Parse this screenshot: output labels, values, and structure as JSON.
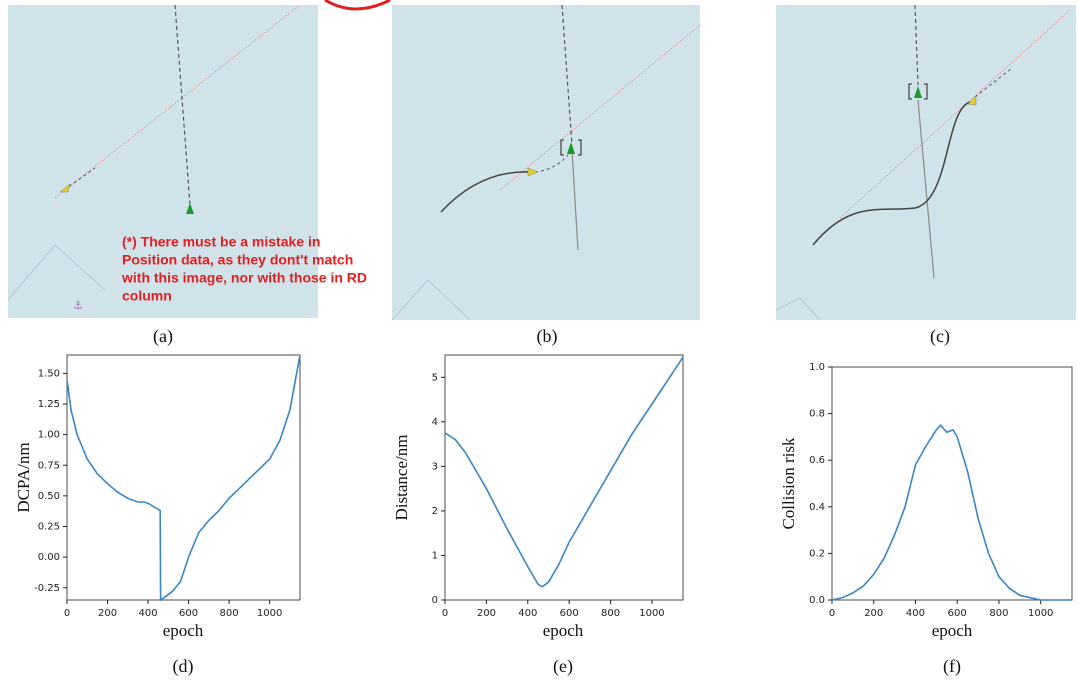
{
  "maps": {
    "panels": [
      "(a)",
      "(b)",
      "(c)"
    ],
    "annotation": [
      "(*) There must be a mistake in",
      "Position data, as they dont't match",
      "with this image, nor with those in RD",
      "column"
    ]
  },
  "chart_data": [
    {
      "type": "line",
      "label": "(d)",
      "ylabel": "DCPA/nm",
      "xlabel": "epoch",
      "color": "#3a86c3",
      "xlim": [
        0,
        1150
      ],
      "xticks": [
        0,
        200,
        400,
        600,
        800,
        1000
      ],
      "ylim": [
        -0.35,
        1.65
      ],
      "yticks": [
        {
          "value": -0.25,
          "label": "-0.25"
        },
        {
          "value": 0,
          "label": "0.00"
        },
        {
          "value": 0.25,
          "label": "0.25"
        },
        {
          "value": 0.5,
          "label": "0.50"
        },
        {
          "value": 0.75,
          "label": "0.75"
        },
        {
          "value": 1,
          "label": "1.00"
        },
        {
          "value": 1.25,
          "label": "1.25"
        },
        {
          "value": 1.5,
          "label": "1.50"
        }
      ],
      "x": [
        0,
        20,
        50,
        100,
        150,
        200,
        250,
        300,
        350,
        380,
        400,
        440,
        460,
        462,
        480,
        520,
        560,
        600,
        650,
        700,
        750,
        800,
        850,
        900,
        950,
        1000,
        1050,
        1100,
        1150
      ],
      "values": [
        1.45,
        1.2,
        1.0,
        0.8,
        0.68,
        0.6,
        0.53,
        0.48,
        0.45,
        0.45,
        0.44,
        0.4,
        0.38,
        -0.35,
        -0.33,
        -0.28,
        -0.2,
        0.0,
        0.2,
        0.3,
        0.38,
        0.48,
        0.56,
        0.64,
        0.72,
        0.8,
        0.95,
        1.2,
        1.65
      ]
    },
    {
      "type": "line",
      "label": "(e)",
      "ylabel": "Distance/nm",
      "xlabel": "epoch",
      "color": "#3a86c3",
      "xlim": [
        0,
        1150
      ],
      "xticks": [
        0,
        200,
        400,
        600,
        800,
        1000
      ],
      "ylim": [
        0,
        5.5
      ],
      "yticks": [
        0,
        1,
        2,
        3,
        4,
        5
      ],
      "x": [
        0,
        50,
        100,
        200,
        300,
        400,
        450,
        470,
        500,
        550,
        600,
        700,
        800,
        900,
        1000,
        1100,
        1150
      ],
      "values": [
        3.75,
        3.6,
        3.3,
        2.5,
        1.6,
        0.75,
        0.35,
        0.3,
        0.4,
        0.8,
        1.3,
        2.1,
        2.9,
        3.7,
        4.4,
        5.1,
        5.45
      ]
    },
    {
      "type": "line",
      "label": "(f)",
      "ylabel": "Collision risk",
      "xlabel": "epoch",
      "color": "#3a86c3",
      "xlim": [
        0,
        1150
      ],
      "xticks": [
        0,
        200,
        400,
        600,
        800,
        1000
      ],
      "ylim": [
        0,
        1
      ],
      "yticks": [
        {
          "value": 0,
          "label": "0.0"
        },
        {
          "value": 0.2,
          "label": "0.2"
        },
        {
          "value": 0.4,
          "label": "0.4"
        },
        {
          "value": 0.6,
          "label": "0.6"
        },
        {
          "value": 0.8,
          "label": "0.8"
        },
        {
          "value": 1,
          "label": "1.0"
        }
      ],
      "x": [
        0,
        50,
        100,
        150,
        200,
        250,
        300,
        350,
        400,
        450,
        500,
        520,
        550,
        580,
        600,
        650,
        700,
        750,
        800,
        850,
        900,
        950,
        1000,
        1150
      ],
      "values": [
        0,
        0.01,
        0.03,
        0.06,
        0.11,
        0.18,
        0.28,
        0.4,
        0.58,
        0.66,
        0.73,
        0.75,
        0.72,
        0.73,
        0.7,
        0.55,
        0.35,
        0.2,
        0.1,
        0.05,
        0.02,
        0.01,
        0,
        0
      ]
    }
  ]
}
